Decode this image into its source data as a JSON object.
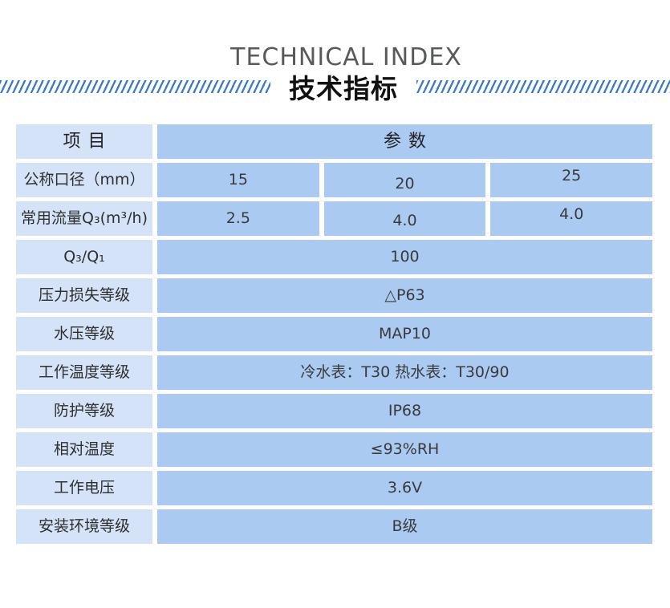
{
  "header": {
    "title_en": "TECHNICAL INDEX",
    "title_zh": "技术指标"
  },
  "table": {
    "item_header": "项目",
    "param_header": "参数",
    "rows": [
      {
        "label": "公称口径（mm）",
        "values": [
          "15",
          "20",
          "25"
        ]
      },
      {
        "label": "常用流量Q₃(m³/h)",
        "values": [
          "2.5",
          "4.0",
          "4.0"
        ]
      },
      {
        "label": "Q₃/Q₁",
        "value": "100"
      },
      {
        "label": "压力损失等级",
        "value": "△P63"
      },
      {
        "label": "水压等级",
        "value": "MAP10"
      },
      {
        "label": "工作温度等级",
        "value": "冷水表：T30 热水表：T30/90"
      },
      {
        "label": "防护等级",
        "value": "IP68"
      },
      {
        "label": "相对温度",
        "value": "≤93%RH"
      },
      {
        "label": "工作电压",
        "value": "3.6V"
      },
      {
        "label": "安装环境等级",
        "value": "B级"
      }
    ]
  },
  "theme": {
    "accent_slash": "#3a7ac8",
    "label_cell_bg": "#d5e3f8",
    "value_cell_bg": "#abcaf2",
    "title_en_color": "#58595b",
    "text_color": "#333333"
  }
}
